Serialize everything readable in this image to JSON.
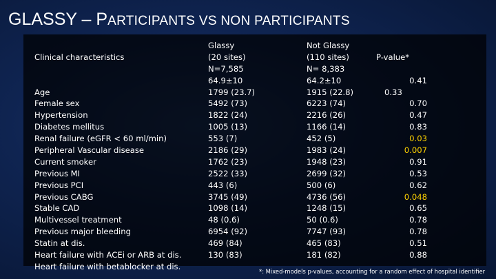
{
  "slide": {
    "title_big_1": "GLASSY",
    "title_sep": " – ",
    "title_big_2": "P",
    "title_small": "ARTICIPANTS VS NON PARTICIPANTS"
  },
  "table": {
    "header": {
      "characteristic": "Clinical characteristics",
      "glassy": [
        "Glassy",
        "(20 sites)",
        "N=7,585"
      ],
      "not_glassy": [
        "Not Glassy",
        "(110 sites)",
        "N= 8,383"
      ],
      "pvalue": "P-value*"
    },
    "rows": [
      {
        "label": "Age",
        "glassy": "64.9±10",
        "not_glassy": "64.2±10",
        "p": "0.41",
        "significant": false
      },
      {
        "label": "Female sex",
        "glassy": "1799 (23.7)",
        "not_glassy": "1915 (22.8)",
        "p": "0.33",
        "significant": false
      },
      {
        "label": "Hypertension",
        "glassy": "5492 (73)",
        "not_glassy": "6223 (74)",
        "p": "0.70",
        "significant": false
      },
      {
        "label": "Diabetes mellitus",
        "glassy": "1822 (24)",
        "not_glassy": "2216 (26)",
        "p": "0.47",
        "significant": false
      },
      {
        "label": "Renal failure (eGFR < 60 ml/min)",
        "glassy": "1005 (13)",
        "not_glassy": "1166 (14)",
        "p": "0.83",
        "significant": false
      },
      {
        "label": "Peripheral Vascular disease",
        "glassy": "553 (7)",
        "not_glassy": "452 (5)",
        "p": "0.03",
        "significant": true
      },
      {
        "label": "Current smoker",
        "glassy": "2186 (29)",
        "not_glassy": "1983 (24)",
        "p": "0.007",
        "significant": true
      },
      {
        "label": "Previous MI",
        "glassy": "1762 (23)",
        "not_glassy": "1948 (23)",
        "p": "0.91",
        "significant": false
      },
      {
        "label": "Previous PCI",
        "glassy": "2522 (33)",
        "not_glassy": "2699 (32)",
        "p": "0.53",
        "significant": false
      },
      {
        "label": "Previous CABG",
        "glassy": "443 (6)",
        "not_glassy": "500 (6)",
        "p": "0.62",
        "significant": false
      },
      {
        "label": "Stable CAD",
        "glassy": "3745 (49)",
        "not_glassy": "4736 (56)",
        "p": "0.048",
        "significant": true
      },
      {
        "label": "Multivessel treatment",
        "glassy": "1098 (14)",
        "not_glassy": "1248 (15)",
        "p": "0.65",
        "significant": false
      },
      {
        "label": "Previous major bleeding",
        "glassy": "48 (0.6)",
        "not_glassy": "50 (0.6)",
        "p": "0.78",
        "significant": false
      },
      {
        "label": "Statin at dis.",
        "glassy": "6954 (92)",
        "not_glassy": "7747 (93)",
        "p": "0.78",
        "significant": false
      },
      {
        "label": "Heart failure with ACEi or ARB at dis.",
        "glassy": "469 (84)",
        "not_glassy": "465 (83)",
        "p": "0.51",
        "significant": false
      },
      {
        "label": "Heart failure with betablocker at dis.",
        "glassy": "130 (83)",
        "not_glassy": "181 (82)",
        "p": "0.88",
        "significant": false
      }
    ]
  },
  "footnote": "*: Mixed-models p-values, accounting for a random effect of hospital identifier",
  "colors": {
    "background": "#0f2451",
    "panel": "#000000",
    "text": "#ffffff",
    "significant": "#ffd400"
  }
}
